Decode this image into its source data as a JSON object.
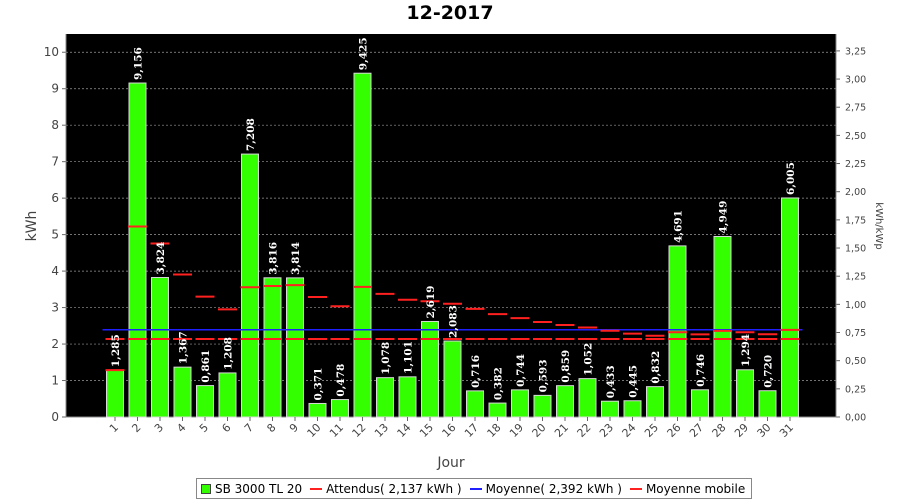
{
  "chart_data": {
    "type": "bar",
    "title": "12-2017",
    "xlabel": "Jour",
    "ylabel": "kWh",
    "y2label": "kWh/kWp",
    "ylim": [
      0,
      10.5
    ],
    "y2lim": [
      0,
      3.4
    ],
    "yticks": [
      0,
      1,
      2,
      3,
      4,
      5,
      6,
      7,
      8,
      9,
      10
    ],
    "y2ticks": [
      "0,00",
      "0,25",
      "0,50",
      "0,75",
      "1,00",
      "1,25",
      "1,50",
      "1,75",
      "2,00",
      "2,25",
      "2,50",
      "2,75",
      "3,00",
      "3,25"
    ],
    "grid": true,
    "legend_position": "bottom",
    "categories": [
      "1",
      "2",
      "3",
      "4",
      "5",
      "6",
      "7",
      "8",
      "9",
      "10",
      "11",
      "12",
      "13",
      "14",
      "15",
      "16",
      "17",
      "18",
      "19",
      "20",
      "21",
      "22",
      "23",
      "24",
      "25",
      "26",
      "27",
      "28",
      "29",
      "30",
      "31"
    ],
    "bar_labels": [
      "1,285",
      "9,156",
      "3,824",
      "1,367",
      "0,861",
      "1,208",
      "7,208",
      "3,816",
      "3,814",
      "0,371",
      "0,478",
      "9,425",
      "1,078",
      "1,101",
      "2,619",
      "2,083",
      "0,716",
      "0,382",
      "0,744",
      "0,593",
      "0,859",
      "1,052",
      "0,433",
      "0,445",
      "0,832",
      "4,691",
      "0,746",
      "4,949",
      "1,294",
      "0,720",
      "6,005"
    ],
    "series": [
      {
        "name": "SB 3000 TL 20",
        "kind": "bar",
        "color": "#33ff00",
        "values": [
          1.285,
          9.156,
          3.824,
          1.367,
          0.861,
          1.208,
          7.208,
          3.816,
          3.814,
          0.371,
          0.478,
          9.425,
          1.078,
          1.101,
          2.619,
          2.083,
          0.716,
          0.382,
          0.744,
          0.593,
          0.859,
          1.052,
          0.433,
          0.445,
          0.832,
          4.691,
          0.746,
          4.949,
          1.294,
          0.72,
          6.005
        ]
      },
      {
        "name": "Attendus( 2,137 kWh )",
        "kind": "constant",
        "color": "#ff2020",
        "value": 2.137
      },
      {
        "name": "Moyenne( 2,392 kWh )",
        "kind": "constant",
        "color": "#2020ff",
        "value": 2.392
      },
      {
        "name": "Moyenne mobile",
        "kind": "step",
        "color": "#ff2020",
        "values": [
          1.285,
          5.221,
          4.755,
          3.908,
          3.299,
          2.95,
          3.558,
          3.59,
          3.615,
          3.291,
          3.036,
          3.568,
          3.376,
          3.213,
          3.173,
          3.105,
          2.965,
          2.82,
          2.71,
          2.604,
          2.521,
          2.454,
          2.366,
          2.286,
          2.228,
          2.323,
          2.265,
          2.36,
          2.323,
          2.269,
          2.389
        ]
      }
    ]
  }
}
